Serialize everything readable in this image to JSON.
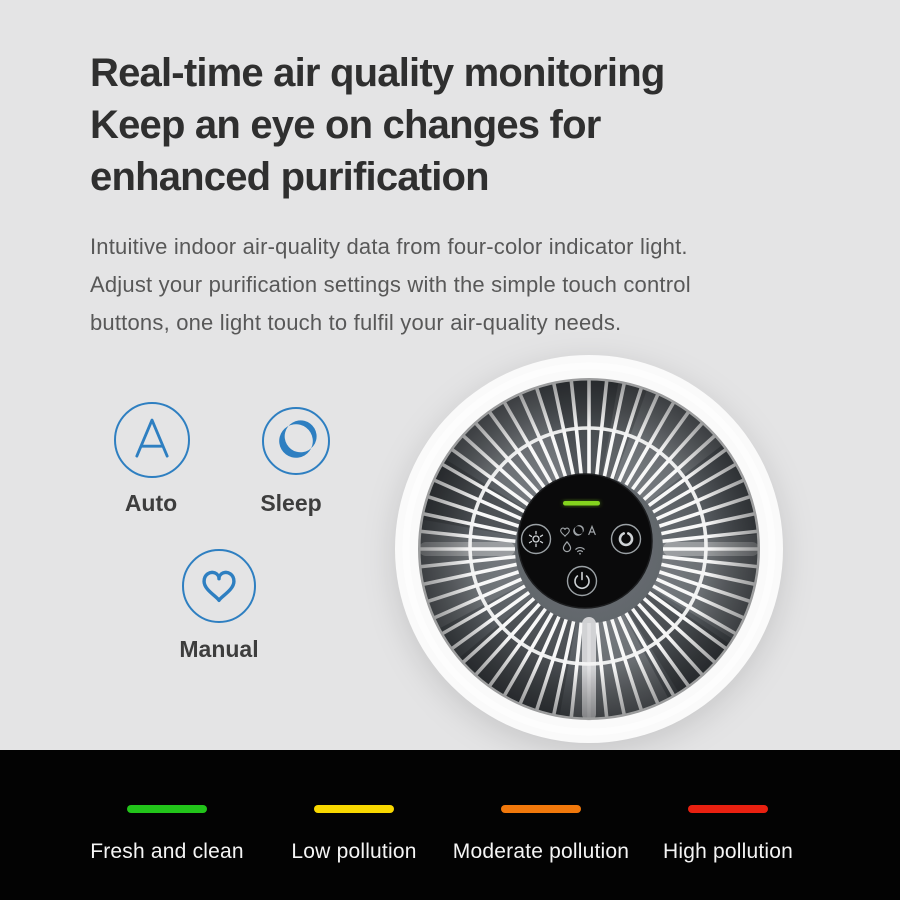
{
  "background": {
    "page": "#e4e4e5",
    "legend_band": "#030303"
  },
  "heading": {
    "lines": [
      "Real-time air quality monitoring",
      "Keep an eye on changes for",
      "enhanced purification"
    ]
  },
  "description": {
    "lines": [
      "Intuitive indoor air-quality data from four-color indicator light.",
      "Adjust your purification settings with the simple touch control",
      "buttons, one light touch to fulfil your air-quality needs."
    ]
  },
  "modes": {
    "accent_color": "#2e7fc1",
    "items": [
      {
        "label": "Auto",
        "icon": "auto-a-icon"
      },
      {
        "label": "Sleep",
        "icon": "moon-icon"
      },
      {
        "label": "Manual",
        "icon": "heart-icon"
      }
    ]
  },
  "purifier": {
    "indicator_color": "#84d41e",
    "panel_buttons": [
      "brightness-button",
      "fan-speed-button",
      "power-button"
    ],
    "status_icons": [
      "heart",
      "moon",
      "auto-a",
      "water-drop",
      "wifi"
    ]
  },
  "legend": {
    "text_color": "#f5f5f5",
    "items": [
      {
        "label": "Fresh and clean",
        "color": "#22c41a"
      },
      {
        "label": "Low pollution",
        "color": "#f8d800"
      },
      {
        "label": "Moderate pollution",
        "color": "#f1780b"
      },
      {
        "label": "High pollution",
        "color": "#e92010"
      }
    ]
  }
}
